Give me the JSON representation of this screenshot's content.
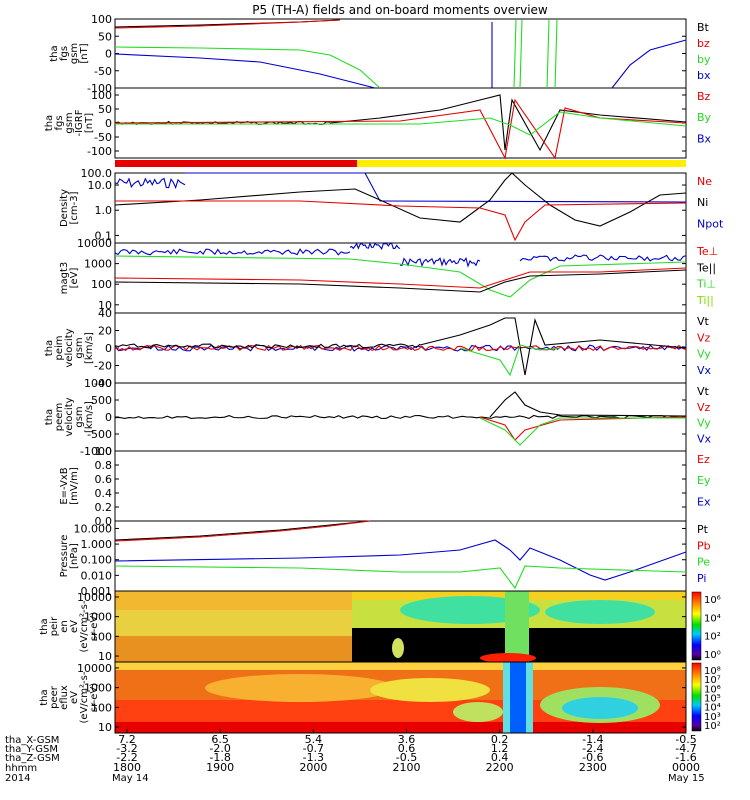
{
  "title": "P5 (TH-A) fields and on-board moments overview",
  "colors": {
    "black": "#000000",
    "red": "#e60000",
    "green": "#22dd22",
    "blue": "#0000cc",
    "yellow": "#ffee00",
    "bright_green": "#7de000"
  },
  "chart_data": {
    "type": "line",
    "time_axis": {
      "tick_times": [
        "1800",
        "1900",
        "2000",
        "2100",
        "2200",
        "2300",
        "0000"
      ],
      "rows": [
        {
          "label": "tha_X-GSM",
          "values": [
            "7.2",
            "6.5",
            "5.4",
            "3.6",
            "0.2",
            "-1.4",
            "-0.5"
          ]
        },
        {
          "label": "tha_Y-GSM",
          "values": [
            "-3.2",
            "-2.0",
            "-0.7",
            "0.6",
            "1.2",
            "-2.4",
            "-4.7"
          ]
        },
        {
          "label": "tha_Z-GSM",
          "values": [
            "-2.2",
            "-1.8",
            "-1.3",
            "-0.5",
            "0.4",
            "-0.6",
            "-1.6"
          ]
        },
        {
          "label": "hhmm",
          "values": [
            "1800",
            "1900",
            "2000",
            "2100",
            "2200",
            "2300",
            "0000"
          ]
        }
      ],
      "date_row": {
        "label": "2014",
        "start": "May 14",
        "end": "May 15"
      }
    },
    "panels": [
      {
        "id": "fgs",
        "ylabel": [
          "tha",
          "fgs",
          "gsm",
          "[nT]"
        ],
        "scale": "linear",
        "ylim": [
          -100,
          100
        ],
        "ticks": [
          "100",
          "50",
          "0",
          "-50",
          "-100"
        ],
        "legend": [
          {
            "label": "Bt",
            "color": "#000000"
          },
          {
            "label": "bz",
            "color": "#e60000"
          },
          {
            "label": "by",
            "color": "#22dd22"
          },
          {
            "label": "bx",
            "color": "#0000cc"
          }
        ]
      },
      {
        "id": "fgs_dc",
        "ylabel": [
          "tha",
          "fgs",
          "gsm",
          "-IGRF",
          "[nT]"
        ],
        "scale": "linear",
        "ylim": [
          -125,
          125
        ],
        "ticks": [
          "100",
          "50",
          "0",
          "-50",
          "-100"
        ],
        "legend": [
          {
            "label": "Bz",
            "color": "#e60000"
          },
          {
            "label": "By",
            "color": "#22dd22"
          },
          {
            "label": "Bx",
            "color": "#0000cc"
          }
        ]
      },
      {
        "id": "density",
        "ylabel": [
          "Density",
          "[cm-3]"
        ],
        "scale": "log",
        "ylim": [
          0.05,
          30
        ],
        "ticks": [
          "100.0",
          "10.0",
          "1.0",
          "0.1"
        ],
        "legend": [
          {
            "label": "Ne",
            "color": "#e60000"
          },
          {
            "label": "Ni",
            "color": "#000000"
          },
          {
            "label": "Npot",
            "color": "#0000cc"
          }
        ]
      },
      {
        "id": "temp",
        "ylabel": [
          "magt3",
          "[eV]"
        ],
        "scale": "log",
        "ylim": [
          4,
          10000
        ],
        "ticks": [
          "10000",
          "1000",
          "100",
          "10"
        ],
        "legend": [
          {
            "label": "Te⊥",
            "color": "#e60000"
          },
          {
            "label": "Te||",
            "color": "#000000"
          },
          {
            "label": "Ti⊥",
            "color": "#22dd22"
          },
          {
            "label": "Ti||",
            "color": "#7de000"
          }
        ]
      },
      {
        "id": "peim",
        "ylabel": [
          "tha",
          "peim",
          "velocity",
          "gsm",
          "[km/s]"
        ],
        "scale": "linear",
        "ylim": [
          -40,
          40
        ],
        "ticks": [
          "40",
          "20",
          "0",
          "-20",
          "-40"
        ],
        "legend": [
          {
            "label": "Vt",
            "color": "#000000"
          },
          {
            "label": "Vz",
            "color": "#e60000"
          },
          {
            "label": "Vy",
            "color": "#22dd22"
          },
          {
            "label": "Vx",
            "color": "#0000cc"
          }
        ]
      },
      {
        "id": "peem",
        "ylabel": [
          "tha",
          "peem",
          "velocity",
          "gsm",
          "[km/s]"
        ],
        "scale": "linear",
        "ylim": [
          -1000,
          1000
        ],
        "ticks": [
          "1000",
          "500",
          "0",
          "-500",
          "-1000"
        ],
        "legend": [
          {
            "label": "Vt",
            "color": "#000000"
          },
          {
            "label": "Vz",
            "color": "#e60000"
          },
          {
            "label": "Vy",
            "color": "#22dd22"
          },
          {
            "label": "Vx",
            "color": "#0000cc"
          }
        ]
      },
      {
        "id": "efield",
        "ylabel": [
          "E=-VxB",
          "[mV/m]"
        ],
        "scale": "linear",
        "ylim": [
          0,
          1
        ],
        "ticks": [
          "1.0",
          "0.8",
          "0.6",
          "0.4",
          "0.2",
          "0.0"
        ],
        "legend": [
          {
            "label": "Ez",
            "color": "#e60000"
          },
          {
            "label": "Ey",
            "color": "#22dd22"
          },
          {
            "label": "Ex",
            "color": "#0000cc"
          }
        ]
      },
      {
        "id": "pressure",
        "ylabel": [
          "Pressure",
          "[nPa]"
        ],
        "scale": "log",
        "ylim": [
          0.001,
          30
        ],
        "ticks": [
          "10.000",
          "1.000",
          "0.100",
          "0.010",
          "0.001"
        ],
        "legend": [
          {
            "label": "Pt",
            "color": "#000000"
          },
          {
            "label": "Pb",
            "color": "#e60000"
          },
          {
            "label": "Pe",
            "color": "#22dd22"
          },
          {
            "label": "Pi",
            "color": "#0000cc"
          }
        ]
      },
      {
        "id": "peir",
        "ylabel": [
          "tha",
          "peir",
          "en",
          "eV",
          "(eV/cm²-s-",
          "sr-eV)"
        ],
        "scale": "log",
        "ylim": [
          5,
          20000
        ],
        "ticks": [
          "10000",
          "1000",
          "100",
          "10"
        ],
        "spectrogram": true,
        "colorbar": [
          "10⁶",
          "10⁴",
          "10²",
          "10⁰"
        ]
      },
      {
        "id": "peer",
        "ylabel": [
          "tha",
          "peer",
          "eflux",
          "eV",
          "(eV/cm²-s-",
          "sr-eV)"
        ],
        "scale": "log",
        "ylim": [
          5,
          20000
        ],
        "ticks": [
          "10000",
          "1000",
          "100",
          "10"
        ],
        "spectrogram": true,
        "colorbar": [
          "10⁸",
          "10⁷",
          "10⁶",
          "10⁵",
          "10⁴",
          "10³",
          "10²"
        ]
      }
    ]
  }
}
